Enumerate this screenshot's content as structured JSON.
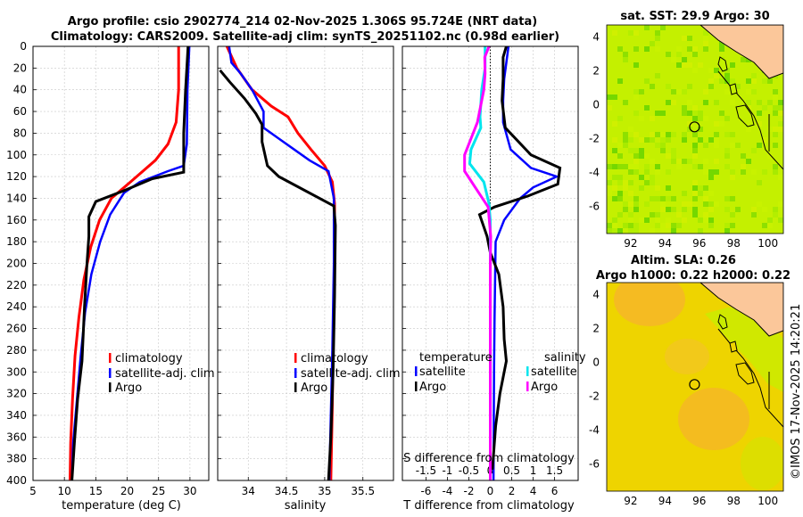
{
  "title": {
    "line1": "Argo profile: csio 2902774_214 02-Nov-2025 1.306S 95.724E (NRT data)",
    "line2": "Climatology: CARS2009. Satellite-adj clim: synTS_20251102.nc (0.98d earlier)"
  },
  "colors": {
    "climatology": "#ff0000",
    "satellite": "#0000ff",
    "argo": "#000000",
    "t_sat": "#0000ff",
    "s_sat": "#00e5ee",
    "s_argo": "#ff00ff",
    "land": "#fbc79a"
  },
  "chart_data": [
    {
      "type": "line",
      "name": "temperature",
      "xlabel": "temperature (deg C)",
      "xlim": [
        5,
        33
      ],
      "ylim": [
        0,
        400
      ],
      "xticks": [
        5,
        10,
        15,
        20,
        25,
        30
      ],
      "yticks": [
        0,
        20,
        40,
        60,
        80,
        100,
        120,
        140,
        160,
        180,
        200,
        220,
        240,
        260,
        280,
        300,
        320,
        340,
        360,
        380,
        400
      ],
      "legend": [
        "climatology",
        "satellite-adj. clim",
        "Argo"
      ],
      "series": [
        {
          "name": "climatology",
          "points": [
            [
              28.2,
              0
            ],
            [
              28.2,
              40
            ],
            [
              27.8,
              70
            ],
            [
              26.5,
              90
            ],
            [
              24.5,
              105
            ],
            [
              20.5,
              125
            ],
            [
              17.5,
              140
            ],
            [
              15.6,
              160
            ],
            [
              14.2,
              185
            ],
            [
              13.1,
              215
            ],
            [
              12.3,
              250
            ],
            [
              11.7,
              285
            ],
            [
              11.3,
              325
            ],
            [
              11.0,
              365
            ],
            [
              10.9,
              400
            ]
          ]
        },
        {
          "name": "satellite-adj. clim",
          "points": [
            [
              29.9,
              0
            ],
            [
              29.6,
              40
            ],
            [
              29.5,
              90
            ],
            [
              29.0,
              110
            ],
            [
              26.5,
              115
            ],
            [
              22,
              125
            ],
            [
              19.5,
              135
            ],
            [
              17.3,
              155
            ],
            [
              15.7,
              180
            ],
            [
              14.3,
              210
            ],
            [
              13.3,
              245
            ],
            [
              12.6,
              285
            ],
            [
              12.0,
              325
            ],
            [
              11.4,
              365
            ],
            [
              11.2,
              400
            ]
          ]
        },
        {
          "name": "Argo",
          "points": [
            [
              29.7,
              0
            ],
            [
              29.3,
              40
            ],
            [
              29.0,
              80
            ],
            [
              29.0,
              116
            ],
            [
              24,
              122
            ],
            [
              19.5,
              133
            ],
            [
              15.0,
              143
            ],
            [
              13.9,
              157
            ],
            [
              13.9,
              175
            ],
            [
              13.6,
              200
            ],
            [
              13.2,
              240
            ],
            [
              12.8,
              290
            ],
            [
              12.1,
              325
            ],
            [
              11.6,
              365
            ],
            [
              11.2,
              400
            ]
          ]
        }
      ]
    },
    {
      "type": "line",
      "name": "salinity",
      "xlabel": "salinity",
      "xlim": [
        33.6,
        35.9
      ],
      "ylim": [
        0,
        400
      ],
      "xticks": [
        34,
        34.5,
        35,
        35.5
      ],
      "legend": [
        "climatology",
        "satellite-adj. clim",
        "Argo"
      ],
      "series": [
        {
          "name": "climatology",
          "points": [
            [
              33.72,
              0
            ],
            [
              33.85,
              20
            ],
            [
              34.05,
              40
            ],
            [
              34.3,
              55
            ],
            [
              34.52,
              65
            ],
            [
              34.65,
              80
            ],
            [
              34.82,
              95
            ],
            [
              35.0,
              110
            ],
            [
              35.1,
              125
            ],
            [
              35.13,
              145
            ],
            [
              35.13,
              200
            ],
            [
              35.11,
              280
            ],
            [
              35.1,
              330
            ],
            [
              35.08,
              400
            ]
          ]
        },
        {
          "name": "satellite-adj. clim",
          "points": [
            [
              33.75,
              0
            ],
            [
              33.78,
              15
            ],
            [
              33.9,
              25
            ],
            [
              34.05,
              40
            ],
            [
              34.2,
              60
            ],
            [
              34.2,
              75
            ],
            [
              34.4,
              85
            ],
            [
              34.6,
              95
            ],
            [
              34.8,
              105
            ],
            [
              35.05,
              115
            ],
            [
              35.12,
              140
            ],
            [
              35.12,
              200
            ],
            [
              35.1,
              280
            ],
            [
              35.08,
              340
            ],
            [
              35.06,
              400
            ]
          ]
        },
        {
          "name": "Argo",
          "points": [
            [
              33.63,
              22
            ],
            [
              33.76,
              33
            ],
            [
              33.95,
              48
            ],
            [
              34.1,
              62
            ],
            [
              34.18,
              72
            ],
            [
              34.18,
              88
            ],
            [
              34.25,
              110
            ],
            [
              34.4,
              120
            ],
            [
              35.12,
              147
            ],
            [
              35.14,
              165
            ],
            [
              35.13,
              230
            ],
            [
              35.11,
              300
            ],
            [
              35.08,
              360
            ],
            [
              35.05,
              400
            ]
          ]
        }
      ]
    },
    {
      "type": "line",
      "name": "difference",
      "xlabel": "T difference from climatology",
      "xlabel_top": "S difference from climatology",
      "xlim": [
        -8.2,
        8.2
      ],
      "ylim": [
        0,
        400
      ],
      "xticks": [
        -6,
        -4,
        -2,
        0,
        2,
        4,
        6
      ],
      "xticks_s": [
        -1.5,
        -1,
        -0.5,
        0,
        0.5,
        1,
        1.5
      ],
      "s_factor": 4,
      "legend_titles": [
        "temperature",
        "salinity"
      ],
      "legend": [
        "satellite",
        "Argo",
        "satellite",
        "Argo"
      ],
      "series": [
        {
          "name": "T satellite",
          "points": [
            [
              1.7,
              0
            ],
            [
              1.5,
              15
            ],
            [
              1.3,
              30
            ],
            [
              1.2,
              50
            ],
            [
              1.2,
              70
            ],
            [
              1.9,
              95
            ],
            [
              3.8,
              112
            ],
            [
              6.2,
              120
            ],
            [
              4.0,
              130
            ],
            [
              2.8,
              140
            ],
            [
              1.3,
              160
            ],
            [
              0.5,
              180
            ],
            [
              0.4,
              250
            ],
            [
              0.35,
              300
            ],
            [
              0.3,
              400
            ]
          ]
        },
        {
          "name": "T Argo",
          "points": [
            [
              1.5,
              0
            ],
            [
              1.2,
              10
            ],
            [
              1.2,
              30
            ],
            [
              1.1,
              50
            ],
            [
              1.4,
              75
            ],
            [
              3.8,
              100
            ],
            [
              6.5,
              112
            ],
            [
              6.3,
              127
            ],
            [
              3.5,
              138
            ],
            [
              0.4,
              148
            ],
            [
              -1.0,
              155
            ],
            [
              -0.3,
              175
            ],
            [
              0,
              190
            ],
            [
              0.8,
              210
            ],
            [
              1.2,
              240
            ],
            [
              1.3,
              270
            ],
            [
              1.5,
              290
            ],
            [
              1.2,
              305
            ],
            [
              0.9,
              320
            ],
            [
              0.5,
              350
            ],
            [
              0.2,
              390
            ]
          ]
        },
        {
          "name": "S satellite",
          "points": [
            [
              -0.12,
              0
            ],
            [
              -0.12,
              20
            ],
            [
              -0.2,
              40
            ],
            [
              -0.24,
              65
            ],
            [
              -0.22,
              75
            ],
            [
              -0.45,
              95
            ],
            [
              -0.48,
              108
            ],
            [
              -0.15,
              125
            ],
            [
              -0.03,
              145
            ],
            [
              0,
              160
            ],
            [
              0,
              400
            ]
          ]
        },
        {
          "name": "S Argo",
          "points": [
            [
              -0.03,
              0
            ],
            [
              -0.13,
              10
            ],
            [
              -0.12,
              25
            ],
            [
              -0.15,
              40
            ],
            [
              -0.3,
              70
            ],
            [
              -0.45,
              85
            ],
            [
              -0.6,
              100
            ],
            [
              -0.6,
              115
            ],
            [
              -0.35,
              130
            ],
            [
              -0.05,
              148
            ],
            [
              0.01,
              175
            ],
            [
              0,
              200
            ],
            [
              0,
              400
            ]
          ]
        }
      ]
    }
  ],
  "maps": {
    "sst": {
      "title": "sat. SST: 29.9 Argo: 30",
      "xticks": [
        92,
        94,
        96,
        98,
        100
      ],
      "yticks": [
        4,
        2,
        0,
        -2,
        -4,
        -6
      ],
      "xlim": [
        90.6,
        100.9
      ],
      "ylim": [
        -7.6,
        4.7
      ],
      "marker": [
        95.72,
        -1.31
      ]
    },
    "sla": {
      "title_line1": "Altim. SLA: 0.26",
      "title_line2": "Argo h1000: 0.22 h2000: 0.22",
      "xticks": [
        92,
        94,
        96,
        98,
        100
      ],
      "yticks": [
        4,
        2,
        0,
        -2,
        -4,
        -6
      ],
      "xlim": [
        90.6,
        100.9
      ],
      "ylim": [
        -7.6,
        4.7
      ],
      "marker": [
        95.72,
        -1.31
      ]
    }
  },
  "credit": "©IMOS 17-Nov-2025 14:20:21"
}
